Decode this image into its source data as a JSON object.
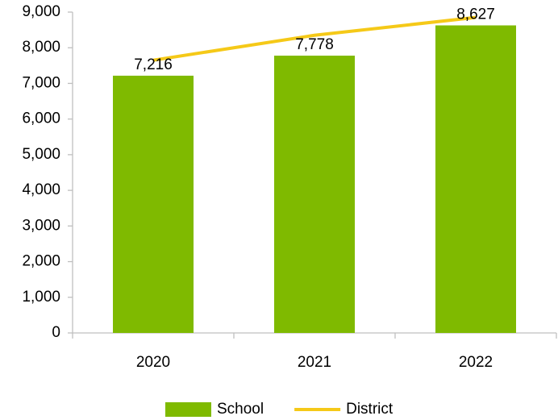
{
  "chart_data": {
    "type": "bar",
    "categories": [
      "2020",
      "2021",
      "2022"
    ],
    "series": [
      {
        "name": "School",
        "type": "bar",
        "color": "#7fba00",
        "values": [
          7216,
          7778,
          8627
        ],
        "value_labels": [
          "7,216",
          "7,778",
          "8,627"
        ]
      },
      {
        "name": "District",
        "type": "line",
        "color": "#f5c918",
        "values": [
          7650,
          8350,
          8850
        ]
      }
    ],
    "ylim": [
      0,
      9000
    ],
    "yticks": [
      0,
      {
        "value": 1000,
        "label": "1,000"
      },
      {
        "value": 2000,
        "label": "2,000"
      },
      {
        "value": 3000,
        "label": "3,000"
      },
      {
        "value": 4000,
        "label": "4,000"
      },
      {
        "value": 5000,
        "label": "5,000"
      },
      {
        "value": 6000,
        "label": "6,000"
      },
      {
        "value": 7000,
        "label": "7,000"
      },
      {
        "value": 8000,
        "label": "8,000"
      },
      {
        "value": 9000,
        "label": "9,000"
      }
    ],
    "grid": false,
    "legend": "bottom"
  }
}
